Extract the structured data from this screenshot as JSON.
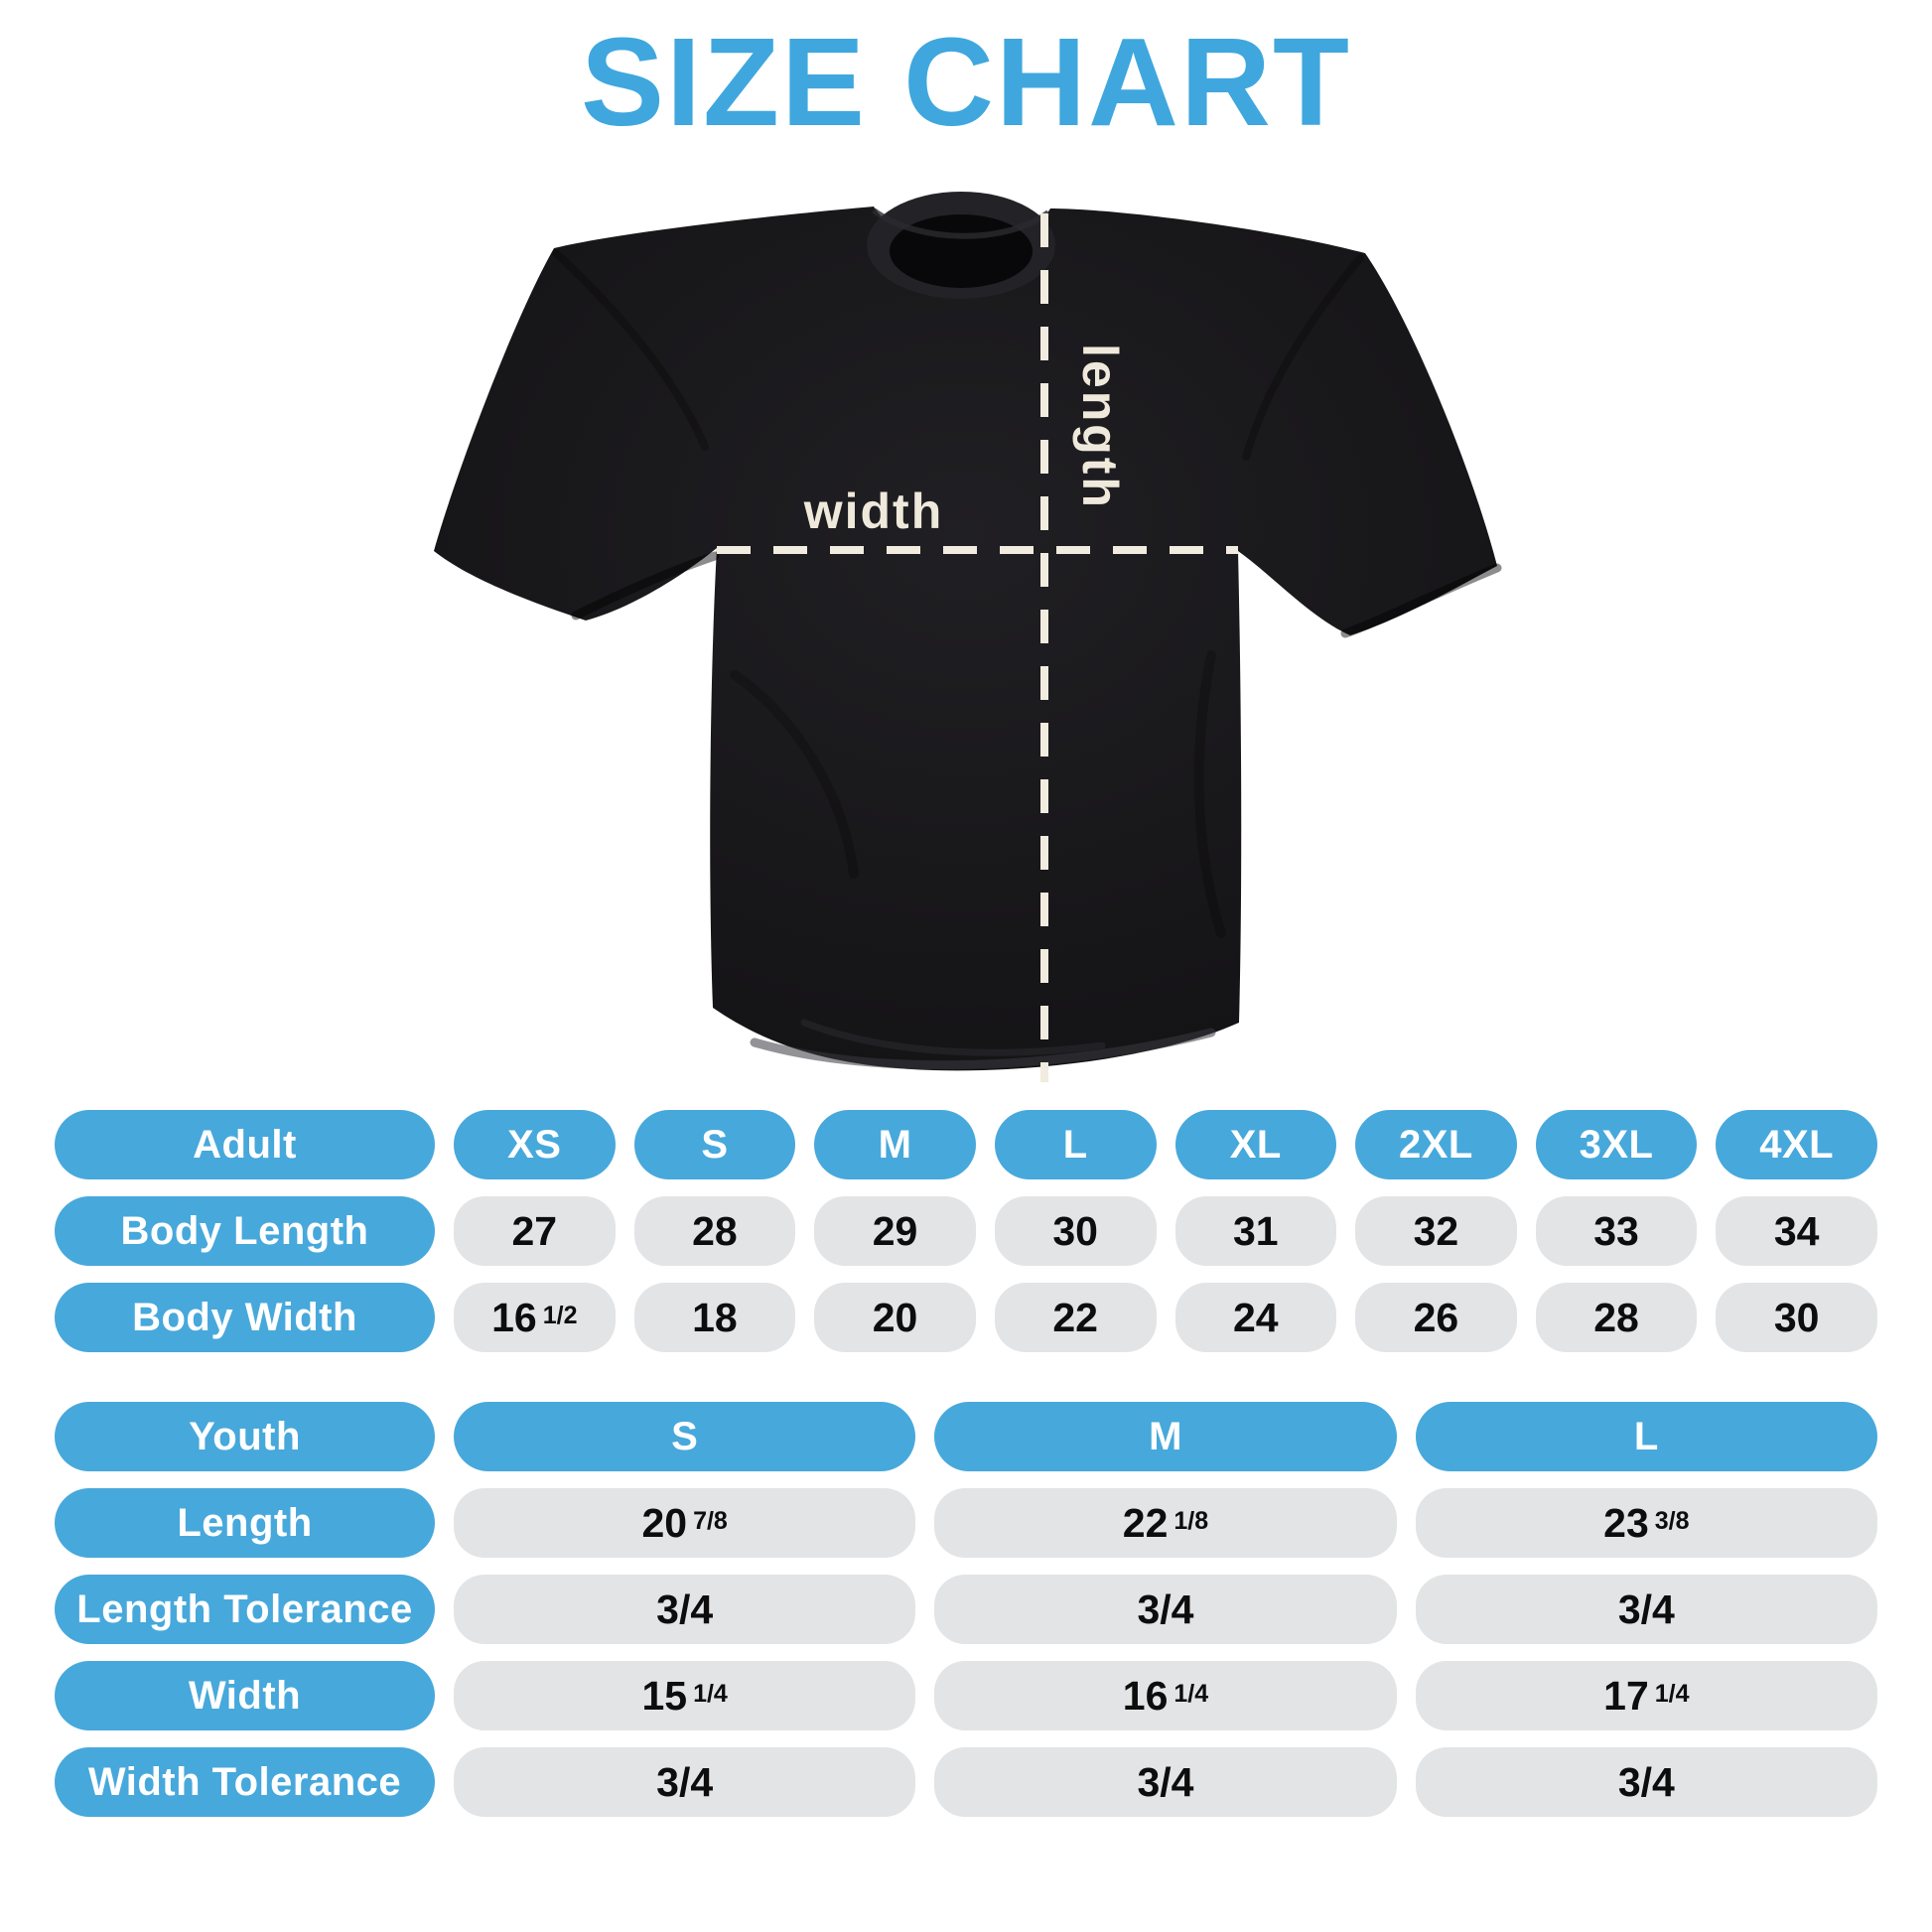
{
  "title": "SIZE CHART",
  "colors": {
    "accent": "#47a8db",
    "title_blue": "#3fa7de",
    "pill_gray": "#e3e4e6",
    "shirt_black": "#18171a",
    "cream": "#f1ebe0"
  },
  "diagram": {
    "width_label": "width",
    "length_label": "length"
  },
  "chart_data": [
    {
      "type": "table",
      "name": "adult",
      "header_label": "Adult",
      "columns": [
        "XS",
        "S",
        "M",
        "L",
        "XL",
        "2XL",
        "3XL",
        "4XL"
      ],
      "rows": [
        {
          "label": "Body Length",
          "values": [
            "27",
            "28",
            "29",
            "30",
            "31",
            "32",
            "33",
            "34"
          ]
        },
        {
          "label": "Body Width",
          "values": [
            "16 1/2",
            "18",
            "20",
            "22",
            "24",
            "26",
            "28",
            "30"
          ]
        }
      ]
    },
    {
      "type": "table",
      "name": "youth",
      "header_label": "Youth",
      "columns": [
        "S",
        "M",
        "L"
      ],
      "rows": [
        {
          "label": "Length",
          "values": [
            "20 7/8",
            "22 1/8",
            "23 3/8"
          ]
        },
        {
          "label": "Length Tolerance",
          "values": [
            "3/4",
            "3/4",
            "3/4"
          ]
        },
        {
          "label": "Width",
          "values": [
            "15 1/4",
            "16 1/4",
            "17 1/4"
          ]
        },
        {
          "label": "Width Tolerance",
          "values": [
            "3/4",
            "3/4",
            "3/4"
          ]
        }
      ]
    }
  ]
}
